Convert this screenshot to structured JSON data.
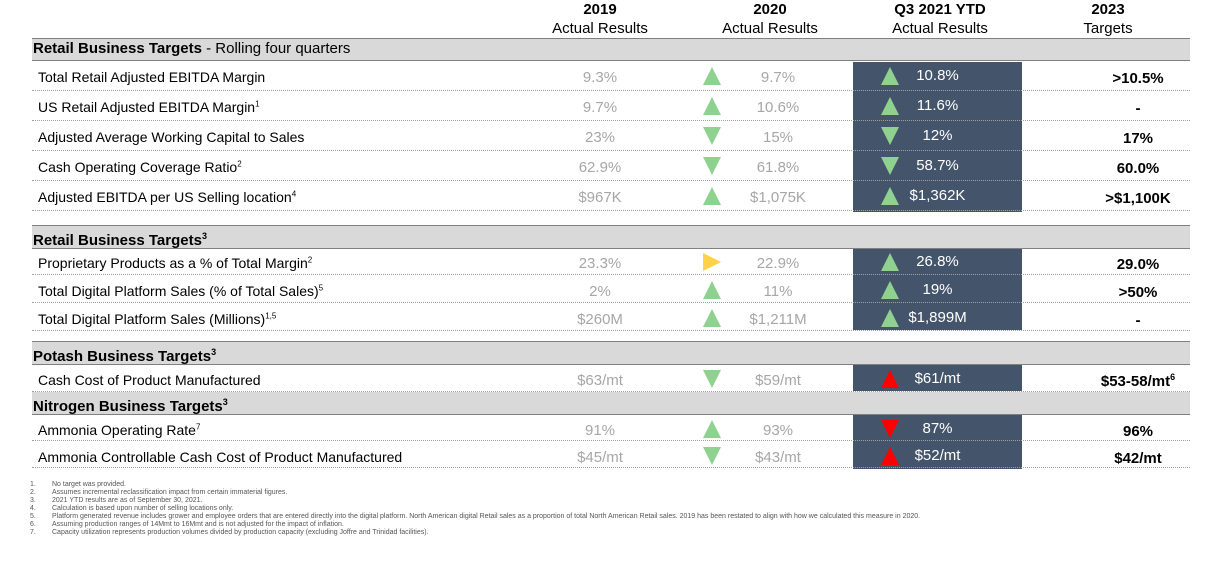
{
  "headers": [
    {
      "year": "2019",
      "sub": "Actual Results"
    },
    {
      "year": "2020",
      "sub": "Actual Results"
    },
    {
      "year": "Q3 2021 YTD",
      "sub": "Actual Results"
    },
    {
      "year": "2023",
      "sub": "Targets"
    }
  ],
  "sections": {
    "s1": {
      "title": "Retail Business Targets",
      "suffix": " - Rolling four quarters",
      "sup": ""
    },
    "s2": {
      "title": "Retail Business Targets",
      "suffix": "",
      "sup": "3"
    },
    "s3": {
      "title": "Potash Business Targets",
      "suffix": "",
      "sup": "3"
    },
    "s4": {
      "title": "Nitrogen Business Targets",
      "suffix": "",
      "sup": "3"
    }
  },
  "rows": [
    {
      "label": "Total Retail Adjusted EBITDA Margin",
      "sup": "",
      "v2019": "9.3%",
      "v2020": "9.7%",
      "q3": "10.8%",
      "target": ">10.5%",
      "tsup": "",
      "a2020": "up-green",
      "aq3": "up-green"
    },
    {
      "label": "US Retail Adjusted EBITDA Margin",
      "sup": "1",
      "v2019": "9.7%",
      "v2020": "10.6%",
      "q3": "11.6%",
      "target": "-",
      "tsup": "",
      "a2020": "up-green",
      "aq3": "up-green"
    },
    {
      "label": "Adjusted Average Working Capital to Sales",
      "sup": "",
      "v2019": "23%",
      "v2020": "15%",
      "q3": "12%",
      "target": "17%",
      "tsup": "",
      "a2020": "down-green",
      "aq3": "down-green"
    },
    {
      "label": "Cash Operating Coverage Ratio",
      "sup": "2",
      "v2019": "62.9%",
      "v2020": "61.8%",
      "q3": "58.7%",
      "target": "60.0%",
      "tsup": "",
      "a2020": "down-green",
      "aq3": "down-green"
    },
    {
      "label": "Adjusted EBITDA per US Selling location",
      "sup": "4",
      "v2019": "$967K",
      "v2020": "$1,075K",
      "q3": "$1,362K",
      "target": ">$1,100K",
      "tsup": "",
      "a2020": "up-green",
      "aq3": "up-green"
    },
    {
      "label": "Proprietary Products as a % of Total Margin",
      "sup": "2",
      "v2019": "23.3%",
      "v2020": "22.9%",
      "q3": "26.8%",
      "target": "29.0%",
      "tsup": "",
      "a2020": "right-yellow",
      "aq3": "up-green"
    },
    {
      "label": "Total Digital Platform Sales (% of Total Sales)",
      "sup": "5",
      "v2019": "2%",
      "v2020": "11%",
      "q3": "19%",
      "target": ">50%",
      "tsup": "",
      "a2020": "up-green",
      "aq3": "up-green"
    },
    {
      "label": "Total Digital Platform Sales (Millions)",
      "sup": "1,5",
      "v2019": "$260M",
      "v2020": "$1,211M",
      "q3": "$1,899M",
      "target": "-",
      "tsup": "",
      "a2020": "up-green",
      "aq3": "up-green"
    },
    {
      "label": "Cash Cost of Product Manufactured",
      "sup": "",
      "v2019": "$63/mt",
      "v2020": "$59/mt",
      "q3": "$61/mt",
      "target": "$53-58/mt",
      "tsup": "6",
      "a2020": "down-green",
      "aq3": "up-red"
    },
    {
      "label": "Ammonia Operating Rate",
      "sup": "7",
      "v2019": "91%",
      "v2020": "93%",
      "q3": "87%",
      "target": "96%",
      "tsup": "",
      "a2020": "up-green",
      "aq3": "down-red"
    },
    {
      "label": "Ammonia Controllable Cash Cost of Product Manufactured",
      "sup": "",
      "v2019": "$45/mt",
      "v2020": "$43/mt",
      "q3": "$52/mt",
      "target": "$42/mt",
      "tsup": "",
      "a2020": "down-green",
      "aq3": "up-red"
    }
  ],
  "footnotes": [
    {
      "n": "1.",
      "text": "No target was provided."
    },
    {
      "n": "2.",
      "text": "Assumes incremental reclassification impact from certain immaterial figures."
    },
    {
      "n": "3.",
      "text": "2021 YTD results are as of September 30, 2021."
    },
    {
      "n": "4.",
      "text": "Calculation is based upon number of selling locations only."
    },
    {
      "n": "5.",
      "text": "Platform generated revenue includes grower and employee orders that are entered directly into the digital platform. North American digital Retail sales as a proportion of total North American Retail sales. 2019 has been restated to align with how we calculated this measure in 2020."
    },
    {
      "n": "6.",
      "text": "Assuming production ranges of 14Mmt to 16Mmt and is not adjusted for the impact of inflation."
    },
    {
      "n": "7.",
      "text": "Capacity utilization represents production volumes divided by production capacity (excluding Joffre and Trinidad facilities)."
    }
  ],
  "colors": {
    "q3_band": "#44546a",
    "arrow_green": "#8fd18f",
    "arrow_red": "#ff0000",
    "arrow_yellow": "#ffd24a",
    "section_band": "#d9d9d9"
  }
}
